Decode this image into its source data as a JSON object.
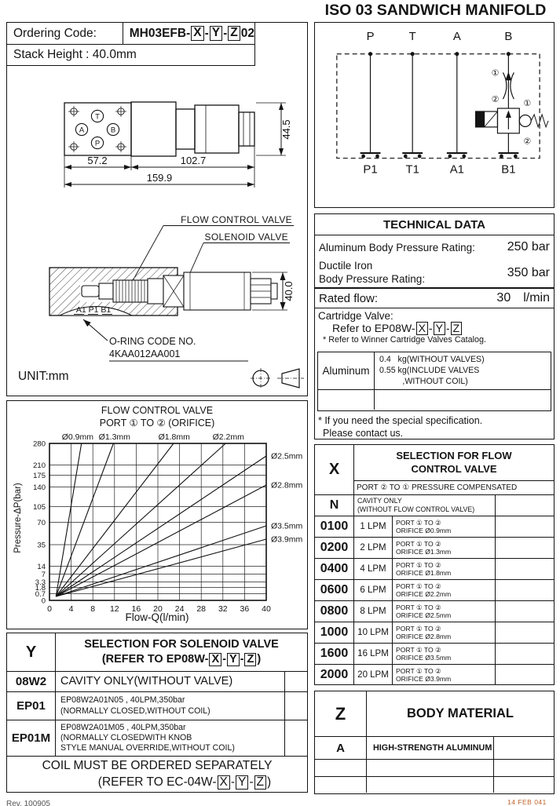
{
  "page": {
    "title": "ISO 03 SANDWICH MANIFOLD",
    "rev_note": "Rev. 100905",
    "date_stamp": "14 FEB 041",
    "unit_note": "UNIT:mm"
  },
  "xyz": {
    "x": "X",
    "y": "Y",
    "z": "Z",
    "sep": "-",
    "close": ")"
  },
  "ordering": {
    "label": "Ordering Code:",
    "code_prefix": "MH03EFB-",
    "code_suffix": "02",
    "stack_height": "Stack Height : 40.0mm"
  },
  "schematic": {
    "top_ports": [
      "P",
      "T",
      "A",
      "B"
    ],
    "bottom_ports": [
      "P1",
      "T1",
      "A1",
      "B1"
    ],
    "c1": "①",
    "c2": "②"
  },
  "dimension_drawing": {
    "port_t": "T",
    "port_a": "A",
    "port_b": "B",
    "port_p": "P",
    "dim_left": "57.2",
    "dim_mid": "102.7",
    "dim_total": "159.9",
    "dim_height": "44.5"
  },
  "section_drawing": {
    "label_flow": "FLOW CONTROL VALVE",
    "label_solenoid": "SOLENOID VALVE",
    "ports_label": "A1 P1 B1",
    "oring_line1": "O-RING CODE NO.",
    "oring_line2": "4KAA012AA001",
    "dim_height": "40.0"
  },
  "technical": {
    "header": "TECHNICAL DATA",
    "row1_label": "Aluminum Body Pressure Rating:",
    "row1_value": "250 bar",
    "row2_label_line1": "Ductile Iron",
    "row2_label_line2": "Body Pressure Rating:",
    "row2_value": "350 bar",
    "row3_label": "Rated flow:",
    "row3_value": "30",
    "row3_unit": "l/min",
    "cartridge_label": "Cartridge Valve:",
    "cartridge_refer_prefix": "Refer to EP08W-",
    "cartridge_note": "* Refer to Winner Cartridge Valves Catalog.",
    "weight_material": "Aluminum",
    "weight_line1": "0.4   kg(WITHOUT VALVES)",
    "weight_line2": "0.55 kg(INCLUDE VALVES",
    "weight_line3": "          ,WITHOUT COIL)",
    "note_line1": "* If you need the special specification.",
    "note_line2": "Please contact us."
  },
  "flow_table": {
    "code_header": "X",
    "title_line1": "SELECTION FOR FLOW",
    "title_line2": "CONTROL VALVE",
    "subtitle": "PORT ② TO ① PRESSURE COMPENSATED",
    "n_code": "N",
    "n_line1": "CAVITY ONLY",
    "n_line2": "(WITHOUT FLOW CONTROL VALVE)",
    "rows": [
      {
        "code": "0100",
        "lpm": "1 LPM",
        "port": "PORT ① TO ②",
        "orifice": "ORIFICE Ø0.9mm"
      },
      {
        "code": "0200",
        "lpm": "2 LPM",
        "port": "PORT ① TO ②",
        "orifice": "ORIFICE Ø1.3mm"
      },
      {
        "code": "0400",
        "lpm": "4 LPM",
        "port": "PORT ① TO ②",
        "orifice": "ORIFICE Ø1.8mm"
      },
      {
        "code": "0600",
        "lpm": "6 LPM",
        "port": "PORT ① TO ②",
        "orifice": "ORIFICE Ø2.2mm"
      },
      {
        "code": "0800",
        "lpm": "8 LPM",
        "port": "PORT ① TO ②",
        "orifice": "ORIFICE Ø2.5mm"
      },
      {
        "code": "1000",
        "lpm": "10 LPM",
        "port": "PORT ① TO ②",
        "orifice": "ORIFICE Ø2.8mm"
      },
      {
        "code": "1600",
        "lpm": "16 LPM",
        "port": "PORT ① TO ②",
        "orifice": "ORIFICE Ø3.5mm"
      },
      {
        "code": "2000",
        "lpm": "20 LPM",
        "port": "PORT ① TO ②",
        "orifice": "ORIFICE Ø3.9mm"
      }
    ]
  },
  "solenoid_table": {
    "code_header": "Y",
    "title_line1": "SELECTION FOR SOLENOID VALVE",
    "title_line2_prefix": "(REFER TO EP08W-",
    "rows": [
      {
        "code": "08W2",
        "line1": "CAVITY ONLY(WITHOUT VALVE)",
        "line2": "",
        "line3": ""
      },
      {
        "code": "EP01",
        "line1": "EP08W2A01N05 , 40LPM,350bar",
        "line2": "(NORMALLY CLOSED,WITHOUT COIL)",
        "line3": ""
      },
      {
        "code": "EP01M",
        "line1": "EP08W2A01M05 , 40LPM,350bar",
        "line2": "(NORMALLY CLOSEDWITH KNOB",
        "line3": "STYLE MANUAL OVERRIDE,WITHOUT COIL)"
      }
    ],
    "footer_line1": "COIL MUST BE ORDERED SEPARATELY",
    "footer_line2_prefix": "(REFER TO EC-04W-"
  },
  "body_table": {
    "code_header": "Z",
    "title": "BODY MATERIAL",
    "row_code": "A",
    "row_desc": "HIGH-STRENGTH ALUMINUM"
  },
  "chart_data": {
    "type": "line",
    "title": "FLOW CONTROL VALVE",
    "subtitle": "PORT ① TO ② (ORIFICE)",
    "xlabel": "Flow-Q(l/min)",
    "ylabel": "Pressure-ΔP(bar)",
    "xlim": [
      0,
      40
    ],
    "x_ticks": [
      0,
      4,
      8,
      12,
      16,
      20,
      24,
      28,
      32,
      36,
      40
    ],
    "y_ticks": [
      {
        "value": "280",
        "frac": 0.0
      },
      {
        "value": "210",
        "frac": 0.138
      },
      {
        "value": "175",
        "frac": 0.203
      },
      {
        "value": "140",
        "frac": 0.278
      },
      {
        "value": "105",
        "frac": 0.403
      },
      {
        "value": "70",
        "frac": 0.503
      },
      {
        "value": "35",
        "frac": 0.645
      },
      {
        "value": "14",
        "frac": 0.783
      },
      {
        "value": "7",
        "frac": 0.833
      },
      {
        "value": "3.3",
        "frac": 0.883
      },
      {
        "value": "1.8",
        "frac": 0.917
      },
      {
        "value": "0.7",
        "frac": 0.957
      },
      {
        "value": "0",
        "frac": 1.0
      }
    ],
    "grid": true,
    "origin_q": 1.2,
    "origin_frac": 0.975,
    "series": [
      {
        "label": "Ø0.9mm",
        "exit": "top",
        "exit_q": 5.9,
        "label_side": "top",
        "label_q": 5.2
      },
      {
        "label": "Ø1.3mm",
        "exit": "top",
        "exit_q": 11.8,
        "label_side": "top",
        "label_q": 12.0
      },
      {
        "label": "Ø1.8mm",
        "exit": "top",
        "exit_q": 22.9,
        "label_side": "top",
        "label_q": 23.0
      },
      {
        "label": "Ø2.2mm",
        "exit": "top",
        "exit_q": 32.5,
        "label_side": "top",
        "label_q": 33.0
      },
      {
        "label": "Ø2.5mm",
        "exit": "right",
        "exit_frac": 0.08,
        "label_side": "right"
      },
      {
        "label": "Ø2.8mm",
        "exit": "right",
        "exit_frac": 0.265,
        "label_side": "right"
      },
      {
        "label": "Ø3.5mm",
        "exit": "right",
        "exit_frac": 0.525,
        "label_side": "right"
      },
      {
        "label": "Ø3.9mm",
        "exit": "right",
        "exit_frac": 0.61,
        "label_side": "right"
      }
    ]
  }
}
